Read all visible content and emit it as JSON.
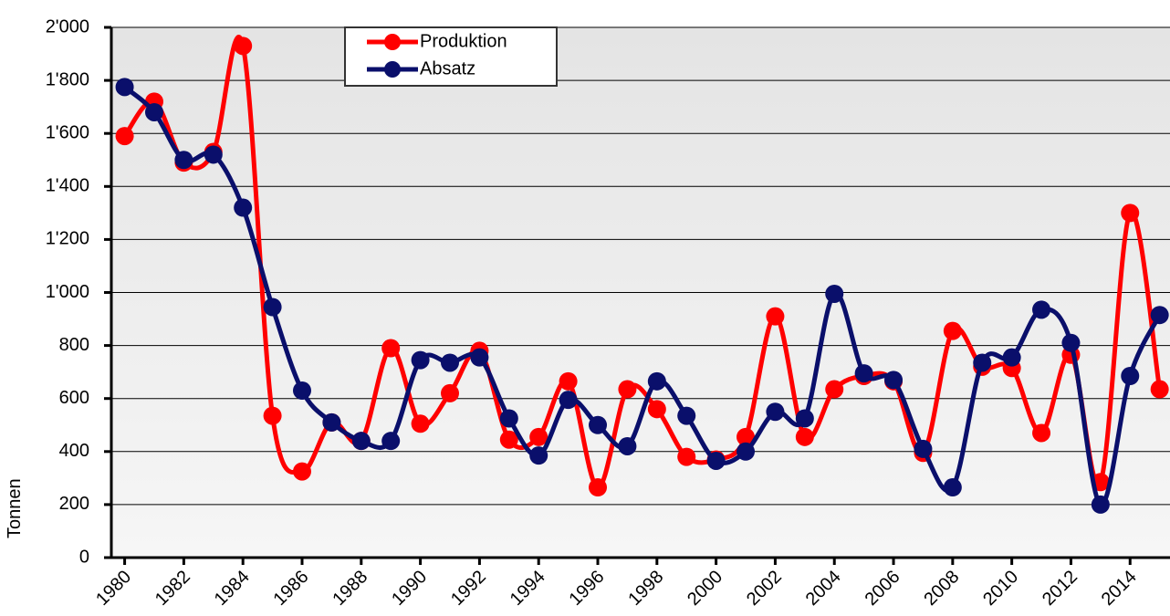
{
  "chart_data": {
    "type": "line",
    "y_label": "Tonnen",
    "x": [
      1980,
      1981,
      1982,
      1983,
      1984,
      1985,
      1986,
      1987,
      1988,
      1989,
      1990,
      1991,
      1992,
      1993,
      1994,
      1995,
      1996,
      1997,
      1998,
      1999,
      2000,
      2001,
      2002,
      2003,
      2004,
      2005,
      2006,
      2007,
      2008,
      2009,
      2010,
      2011,
      2012,
      2013,
      2014,
      2015
    ],
    "series": [
      {
        "name": "Produktion",
        "color": "#ff0000",
        "values": [
          1590,
          1720,
          1490,
          1530,
          1930,
          535,
          325,
          510,
          440,
          790,
          505,
          620,
          780,
          445,
          455,
          665,
          265,
          635,
          560,
          380,
          370,
          455,
          910,
          455,
          635,
          685,
          665,
          395,
          855,
          720,
          715,
          470,
          765,
          285,
          1300,
          635
        ]
      },
      {
        "name": "Absatz",
        "color": "#0a0f6b",
        "values": [
          1775,
          1680,
          1500,
          1520,
          1320,
          945,
          630,
          510,
          440,
          440,
          745,
          735,
          755,
          525,
          385,
          595,
          500,
          420,
          665,
          535,
          365,
          400,
          550,
          525,
          995,
          695,
          670,
          410,
          265,
          735,
          755,
          935,
          810,
          200,
          685,
          915
        ]
      }
    ],
    "xlim": [
      1979.55,
      2015.35
    ],
    "xticks": [
      1980,
      1982,
      1984,
      1986,
      1988,
      1990,
      1992,
      1994,
      1996,
      1998,
      2000,
      2002,
      2004,
      2006,
      2008,
      2010,
      2012,
      2014
    ],
    "ylim": [
      0,
      2000
    ],
    "yticks": [
      0,
      200,
      400,
      600,
      800,
      {
        "value": 1000,
        "label": "1'000"
      },
      {
        "value": 1200,
        "label": "1'200"
      },
      {
        "value": 1400,
        "label": "1'400"
      },
      {
        "value": 1600,
        "label": "1'600"
      },
      {
        "value": 1800,
        "label": "1'800"
      },
      {
        "value": 2000,
        "label": "2'000"
      }
    ],
    "grid": true
  }
}
